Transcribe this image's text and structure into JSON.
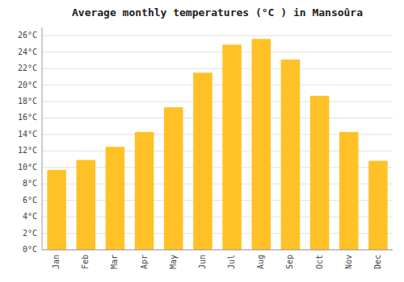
{
  "chart_data": {
    "type": "bar",
    "title": "Average monthly temperatures (°C ) in Mansoûra",
    "categories": [
      "Jan",
      "Feb",
      "Mar",
      "Apr",
      "May",
      "Jun",
      "Jul",
      "Aug",
      "Sep",
      "Oct",
      "Nov",
      "Dec"
    ],
    "values": [
      9.7,
      10.9,
      12.5,
      14.3,
      17.3,
      21.5,
      24.9,
      25.6,
      23.1,
      18.7,
      14.3,
      10.8
    ],
    "color": "#FFC125",
    "ylim": [
      0,
      27
    ],
    "yticks": [
      {
        "value": 0,
        "label": "0°C"
      },
      {
        "value": 2,
        "label": "2°C"
      },
      {
        "value": 4,
        "label": "4°C"
      },
      {
        "value": 6,
        "label": "6°C"
      },
      {
        "value": 8,
        "label": "8°C"
      },
      {
        "value": 10,
        "label": "10°C"
      },
      {
        "value": 12,
        "label": "12°C"
      },
      {
        "value": 14,
        "label": "14°C"
      },
      {
        "value": 16,
        "label": "16°C"
      },
      {
        "value": 18,
        "label": "18°C"
      },
      {
        "value": 20,
        "label": "20°C"
      },
      {
        "value": 22,
        "label": "22°C"
      },
      {
        "value": 24,
        "label": "24°C"
      },
      {
        "value": 26,
        "label": "26°C"
      }
    ],
    "grid": true
  }
}
